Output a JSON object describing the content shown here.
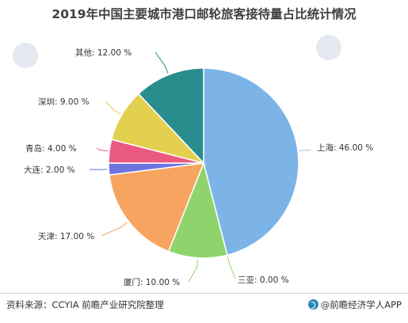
{
  "title": "2019年中国主要城市港口邮轮旅客接待量占比统计情况",
  "footer": {
    "source": "资料来源：CCYIA 前瞻产业研究院整理",
    "brand": "@前瞻经济学人APP"
  },
  "colors": {
    "上海": "#7cb4e8",
    "三亚": "#8fd36c",
    "厦门": "#8fd36c",
    "天津": "#f6a45f",
    "大连": "#6e73e0",
    "青岛": "#eb5a80",
    "深圳": "#e3d04f",
    "其他": "#2a8d8d",
    "leader_line": "#9ec3df",
    "watermark": "#e3e9ee"
  },
  "chart_data": {
    "type": "pie",
    "title": "2019年中国主要城市港口邮轮旅客接待量占比统计情况",
    "start_angle": "12 o'clock",
    "direction": "clockwise",
    "slices": [
      {
        "label": "上海",
        "value": 46.0,
        "display": "上海: 46.00 %"
      },
      {
        "label": "三亚",
        "value": 0.0,
        "display": "三亚: 0.00 %"
      },
      {
        "label": "厦门",
        "value": 10.0,
        "display": "厦门: 10.00 %"
      },
      {
        "label": "天津",
        "value": 17.0,
        "display": "天津: 17.00 %"
      },
      {
        "label": "大连",
        "value": 2.0,
        "display": "大连: 2.00 %"
      },
      {
        "label": "青岛",
        "value": 4.0,
        "display": "青岛: 4.00 %"
      },
      {
        "label": "深圳",
        "value": 9.0,
        "display": "深圳: 9.00 %"
      },
      {
        "label": "其他",
        "value": 12.0,
        "display": "其他: 12.00 %"
      }
    ]
  }
}
